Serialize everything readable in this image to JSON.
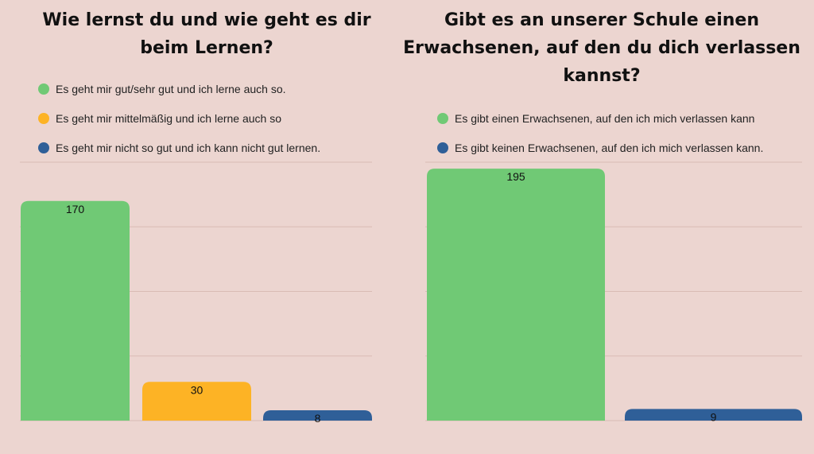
{
  "chart_data": [
    {
      "type": "bar",
      "title": "Wie lernst du und wie geht es dir beim Lernen?",
      "categories": [
        "Es geht mir gut/sehr gut und ich lerne auch so.",
        "Es geht mir mittelmäßig und ich lerne auch so",
        "Es geht mir nicht so gut und ich kann nicht gut lernen."
      ],
      "values": [
        170,
        30,
        8
      ],
      "colors": [
        "#70c975",
        "#fdb325",
        "#2f5f98"
      ],
      "ylim": [
        0,
        200
      ],
      "grid": true,
      "legend": "top"
    },
    {
      "type": "bar",
      "title": "Gibt es an unserer Schule einen Erwachsenen, auf den du dich verlassen kannst?",
      "categories": [
        "Es gibt einen Erwachsenen, auf den ich mich verlassen kann",
        "Es gibt keinen Erwachsenen, auf den ich mich verlassen kann."
      ],
      "values": [
        195,
        9
      ],
      "colors": [
        "#70c975",
        "#2f5f98"
      ],
      "ylim": [
        0,
        200
      ],
      "grid": true,
      "legend": "top"
    }
  ]
}
